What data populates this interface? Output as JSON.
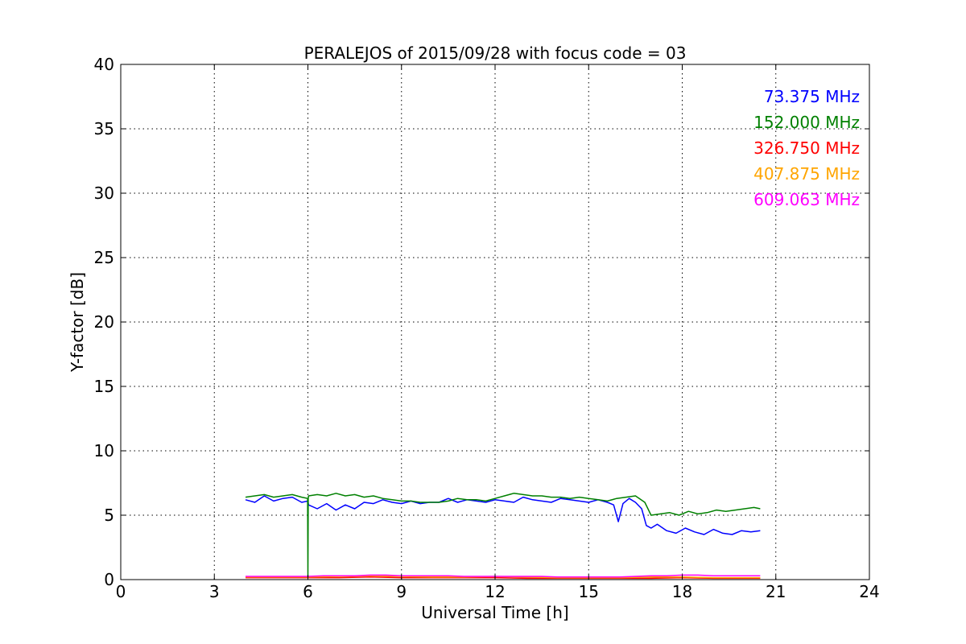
{
  "chart_data": {
    "type": "line",
    "title": "PERALEJOS of 2015/09/28 with focus code = 03",
    "xlabel": "Universal Time [h]",
    "ylabel": "Y-factor [dB]",
    "xlim": [
      0,
      24
    ],
    "ylim": [
      0,
      40
    ],
    "xticks": [
      "0",
      "3",
      "6",
      "9",
      "12",
      "15",
      "18",
      "21",
      "24"
    ],
    "yticks": [
      "0",
      "5",
      "10",
      "15",
      "20",
      "25",
      "30",
      "35",
      "40"
    ],
    "grid": true,
    "legend_position": "top-right",
    "series": [
      {
        "name": "73.375 MHz",
        "color": "#0000ff",
        "x": [
          4.0,
          4.3,
          4.6,
          4.9,
          5.2,
          5.5,
          5.8,
          6.0,
          6.02,
          6.3,
          6.6,
          6.9,
          7.2,
          7.5,
          7.8,
          8.1,
          8.4,
          8.7,
          9.0,
          9.3,
          9.6,
          9.9,
          10.2,
          10.5,
          10.8,
          11.1,
          11.4,
          11.7,
          12.0,
          12.3,
          12.6,
          12.9,
          13.2,
          13.5,
          13.8,
          14.1,
          14.4,
          14.7,
          15.0,
          15.3,
          15.6,
          15.8,
          15.95,
          16.1,
          16.3,
          16.5,
          16.7,
          16.85,
          17.0,
          17.2,
          17.5,
          17.8,
          18.1,
          18.4,
          18.7,
          19.0,
          19.3,
          19.6,
          19.9,
          20.2,
          20.5
        ],
        "y": [
          6.2,
          6.0,
          6.5,
          6.1,
          6.3,
          6.4,
          6.0,
          6.1,
          5.8,
          5.5,
          5.9,
          5.4,
          5.8,
          5.5,
          6.0,
          5.9,
          6.2,
          6.0,
          5.9,
          6.1,
          5.9,
          6.0,
          6.0,
          6.3,
          6.0,
          6.2,
          6.1,
          6.0,
          6.2,
          6.1,
          6.0,
          6.4,
          6.2,
          6.1,
          6.0,
          6.3,
          6.2,
          6.1,
          6.0,
          6.2,
          6.0,
          5.8,
          4.5,
          5.9,
          6.3,
          6.0,
          5.5,
          4.2,
          4.0,
          4.3,
          3.8,
          3.6,
          4.0,
          3.7,
          3.5,
          3.9,
          3.6,
          3.5,
          3.8,
          3.7,
          3.8
        ]
      },
      {
        "name": "152.000 MHz",
        "color": "#008000",
        "x": [
          4.0,
          4.3,
          4.6,
          4.9,
          5.2,
          5.5,
          5.8,
          5.99,
          6.0,
          6.01,
          6.02,
          6.3,
          6.6,
          6.9,
          7.2,
          7.5,
          7.8,
          8.1,
          8.4,
          8.7,
          9.0,
          9.3,
          9.6,
          9.9,
          10.2,
          10.5,
          10.8,
          11.1,
          11.4,
          11.7,
          12.0,
          12.3,
          12.6,
          12.9,
          13.2,
          13.5,
          13.8,
          14.1,
          14.4,
          14.7,
          15.0,
          15.3,
          15.6,
          15.9,
          16.2,
          16.5,
          16.8,
          17.0,
          17.3,
          17.6,
          17.9,
          18.2,
          18.5,
          18.8,
          19.1,
          19.4,
          19.7,
          20.0,
          20.3,
          20.5
        ],
        "y": [
          6.4,
          6.5,
          6.6,
          6.4,
          6.5,
          6.6,
          6.4,
          6.3,
          0.2,
          6.3,
          6.5,
          6.6,
          6.5,
          6.7,
          6.5,
          6.6,
          6.4,
          6.5,
          6.3,
          6.2,
          6.1,
          6.1,
          6.0,
          6.0,
          6.0,
          6.1,
          6.3,
          6.2,
          6.2,
          6.1,
          6.3,
          6.5,
          6.7,
          6.6,
          6.5,
          6.5,
          6.4,
          6.4,
          6.3,
          6.4,
          6.3,
          6.2,
          6.1,
          6.3,
          6.4,
          6.5,
          6.0,
          5.0,
          5.1,
          5.2,
          5.0,
          5.3,
          5.1,
          5.2,
          5.4,
          5.3,
          5.4,
          5.5,
          5.6,
          5.5
        ]
      },
      {
        "name": "326.750 MHz",
        "color": "#ff0000",
        "x": [
          4.0,
          5.0,
          6.0,
          7.0,
          8.0,
          9.0,
          10.0,
          11.0,
          12.0,
          13.0,
          14.0,
          15.0,
          16.0,
          17.0,
          18.0,
          19.0,
          20.0,
          20.5
        ],
        "y": [
          0.15,
          0.15,
          0.15,
          0.15,
          0.2,
          0.15,
          0.15,
          0.15,
          0.15,
          0.1,
          0.1,
          0.1,
          0.1,
          0.1,
          0.15,
          0.1,
          0.1,
          0.1
        ]
      },
      {
        "name": "407.875 MHz",
        "color": "#ffa500",
        "x": [
          4.0,
          5.0,
          6.0,
          7.0,
          8.0,
          9.0,
          10.0,
          11.0,
          12.0,
          13.0,
          14.0,
          15.0,
          16.0,
          17.0,
          18.0,
          19.0,
          20.0,
          20.5
        ],
        "y": [
          0.2,
          0.2,
          0.2,
          0.25,
          0.3,
          0.25,
          0.2,
          0.2,
          0.25,
          0.2,
          0.15,
          0.15,
          0.15,
          0.2,
          0.2,
          0.15,
          0.15,
          0.15
        ]
      },
      {
        "name": "609.063 MHz",
        "color": "#ff00ff",
        "x": [
          4.0,
          4.5,
          5.0,
          5.5,
          6.0,
          6.5,
          7.0,
          7.5,
          8.0,
          8.5,
          9.0,
          9.5,
          10.0,
          10.5,
          11.0,
          11.5,
          12.0,
          12.5,
          13.0,
          13.5,
          14.0,
          14.5,
          15.0,
          15.5,
          16.0,
          16.5,
          17.0,
          17.5,
          18.0,
          18.5,
          19.0,
          19.5,
          20.0,
          20.5
        ],
        "y": [
          0.25,
          0.25,
          0.25,
          0.25,
          0.25,
          0.3,
          0.3,
          0.3,
          0.35,
          0.35,
          0.3,
          0.3,
          0.3,
          0.3,
          0.25,
          0.25,
          0.25,
          0.25,
          0.25,
          0.25,
          0.2,
          0.2,
          0.2,
          0.2,
          0.2,
          0.25,
          0.3,
          0.3,
          0.35,
          0.35,
          0.3,
          0.3,
          0.3,
          0.3
        ]
      }
    ]
  }
}
